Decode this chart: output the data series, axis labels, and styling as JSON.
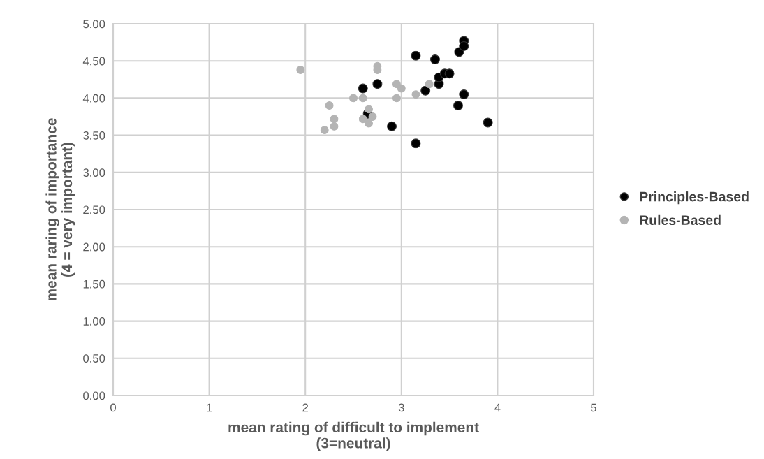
{
  "chart_data": {
    "type": "scatter",
    "xlabel": "mean rating of difficult to implement\n(3=neutral)",
    "ylabel": "mean raring of importance\n(4 = very important)",
    "xlim": [
      0,
      5
    ],
    "xticks": [
      0,
      1,
      2,
      3,
      4,
      5
    ],
    "ylim": [
      0,
      5
    ],
    "yticks": [
      {
        "value": 0,
        "label": "0.00"
      },
      {
        "value": 0.5,
        "label": "0.50"
      },
      {
        "value": 1,
        "label": "1.00"
      },
      {
        "value": 1.5,
        "label": "1.50"
      },
      {
        "value": 2,
        "label": "2.00"
      },
      {
        "value": 2.5,
        "label": "2.50"
      },
      {
        "value": 3,
        "label": "3.00"
      },
      {
        "value": 3.5,
        "label": "3.50"
      },
      {
        "value": 4,
        "label": "4.00"
      },
      {
        "value": 4.5,
        "label": "4.50"
      },
      {
        "value": 5,
        "label": "5.00"
      }
    ],
    "grid": true,
    "legend": "right",
    "marker": "circle",
    "series": [
      {
        "name": "Principles-Based",
        "color": "#000000",
        "x": [
          2.6,
          2.75,
          2.65,
          2.9,
          3.15,
          3.25,
          3.39,
          3.39,
          3.45,
          3.5,
          3.59,
          3.65,
          3.9,
          3.15,
          3.35,
          3.6,
          3.65,
          3.65
        ],
        "values": [
          4.13,
          4.19,
          3.79,
          3.62,
          3.39,
          4.1,
          4.19,
          4.28,
          4.33,
          4.33,
          3.9,
          4.05,
          3.67,
          4.57,
          4.52,
          4.62,
          4.77,
          4.7
        ]
      },
      {
        "name": "Rules-Based",
        "color": "#b4b4b4",
        "x": [
          1.95,
          2.75,
          2.75,
          2.95,
          3.0,
          3.29,
          3.15,
          2.5,
          2.6,
          2.95,
          2.25,
          2.66,
          2.6,
          2.7,
          2.66,
          2.3,
          2.3,
          2.2
        ],
        "values": [
          4.38,
          4.43,
          4.38,
          4.19,
          4.13,
          4.19,
          4.05,
          4.0,
          4.0,
          4.0,
          3.9,
          3.85,
          3.72,
          3.75,
          3.66,
          3.72,
          3.62,
          3.57
        ]
      }
    ]
  }
}
